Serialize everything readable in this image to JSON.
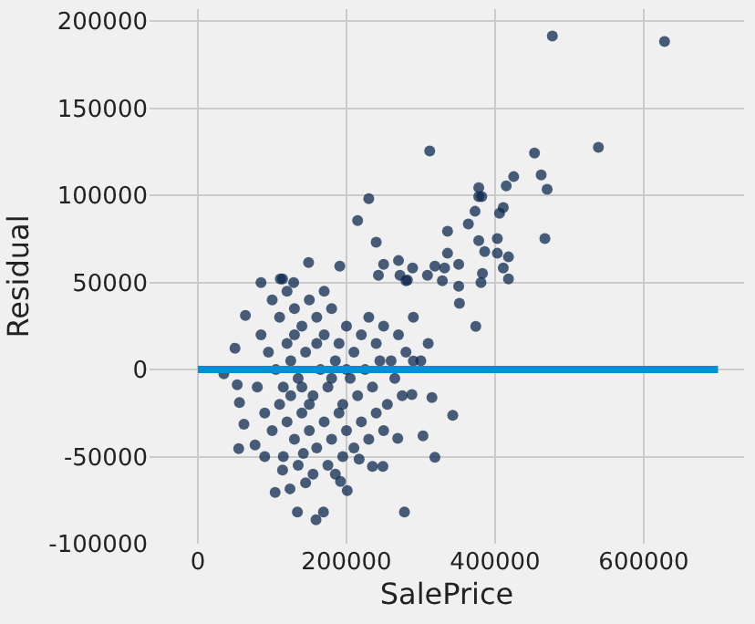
{
  "chart_data": {
    "type": "scatter",
    "xlabel": "SalePrice",
    "ylabel": "Residual",
    "xlim": [
      -65000,
      735000
    ],
    "ylim": [
      -100000,
      207000
    ],
    "xticks": [
      0,
      200000,
      400000,
      600000
    ],
    "yticks": [
      -100000,
      -50000,
      0,
      50000,
      100000,
      150000,
      200000
    ],
    "grid": true,
    "series": [
      {
        "marker": "circle",
        "color": "#0d2a50",
        "x": [
          477000,
          628000,
          539000,
          312000,
          453000,
          462000,
          425000,
          378000,
          415000,
          470000,
          378000,
          382000,
          230000,
          411000,
          406000,
          373000,
          215000,
          364000,
          336000,
          467000,
          403000,
          240000,
          378000,
          386000,
          336000,
          403000,
          418000,
          149000,
          191000,
          250000,
          270000,
          289000,
          319000,
          332000,
          351000,
          411000,
          243000,
          272000,
          309000,
          383000,
          418000,
          85000,
          114000,
          129000,
          280000,
          329000,
          381000,
          351000,
          35000,
          50000,
          53000,
          56000,
          62000,
          55000,
          104000,
          124000,
          134000,
          159000,
          169000,
          201000,
          192000,
          278000,
          319000,
          343000,
          374000,
          315000,
          303000,
          249000,
          235000,
          217000,
          114000,
          90000,
          77000,
          64000,
          111000,
          282000,
          352000,
          288000,
          290000,
          269000,
          142000,
          100000,
          110000,
          120000,
          130000,
          140000,
          150000,
          160000,
          170000,
          180000,
          190000,
          200000,
          210000,
          220000,
          230000,
          240000,
          250000,
          260000,
          270000,
          280000,
          290000,
          300000,
          310000,
          95000,
          105000,
          115000,
          125000,
          135000,
          145000,
          155000,
          165000,
          175000,
          185000,
          195000,
          205000,
          215000,
          225000,
          235000,
          245000,
          255000,
          265000,
          275000,
          90000,
          100000,
          110000,
          120000,
          130000,
          140000,
          150000,
          160000,
          170000,
          180000,
          190000,
          200000,
          210000,
          220000,
          230000,
          240000,
          250000,
          115000,
          135000,
          155000,
          175000,
          195000,
          145000,
          185000,
          85000,
          80000,
          120000,
          140000,
          160000,
          180000,
          200000,
          130000,
          170000,
          150000,
          125000
        ],
        "values": [
          191500,
          188400,
          127600,
          125500,
          124400,
          111800,
          110800,
          104500,
          105500,
          103500,
          99300,
          99300,
          98200,
          93000,
          89800,
          90900,
          85600,
          83600,
          79400,
          75200,
          75200,
          73100,
          74100,
          67800,
          66800,
          66800,
          64700,
          61500,
          59400,
          60500,
          62600,
          58400,
          59400,
          58400,
          60500,
          58400,
          54200,
          54200,
          54200,
          55200,
          52100,
          50000,
          52100,
          50000,
          51000,
          51000,
          50000,
          47900,
          -2400,
          12300,
          -8700,
          -18900,
          -31400,
          -45400,
          -70500,
          -68500,
          -81800,
          -86300,
          -81800,
          -69500,
          -64300,
          -81800,
          -50300,
          -26200,
          24800,
          -16100,
          -38100,
          -55600,
          -55600,
          -51400,
          -57700,
          -50000,
          -43300,
          31100,
          52100,
          51400,
          38100,
          -14300,
          4900,
          -39500,
          -48200,
          40000,
          30000,
          45000,
          35000,
          25000,
          40000,
          30000,
          20000,
          35000,
          15000,
          25000,
          10000,
          20000,
          30000,
          15000,
          25000,
          5000,
          20000,
          10000,
          30000,
          5000,
          15000,
          10000,
          0,
          -10000,
          5000,
          -5000,
          10000,
          -15000,
          0,
          -10000,
          5000,
          -20000,
          -5000,
          -15000,
          0,
          -10000,
          5000,
          -20000,
          -5000,
          -15000,
          -25000,
          -35000,
          -20000,
          -30000,
          -40000,
          -25000,
          -35000,
          -45000,
          -30000,
          -40000,
          -25000,
          -35000,
          -45000,
          -30000,
          -40000,
          -25000,
          -35000,
          -50000,
          -55000,
          -60000,
          -55000,
          -50000,
          -65000,
          -60000,
          20000,
          -10000,
          15000,
          -10000,
          15000,
          -5000,
          0,
          20000,
          45000,
          -20000,
          -15000
        ]
      },
      {
        "type": "line",
        "color": "#008fd5",
        "x": [
          0,
          700000
        ],
        "values": [
          0,
          0
        ]
      }
    ]
  }
}
